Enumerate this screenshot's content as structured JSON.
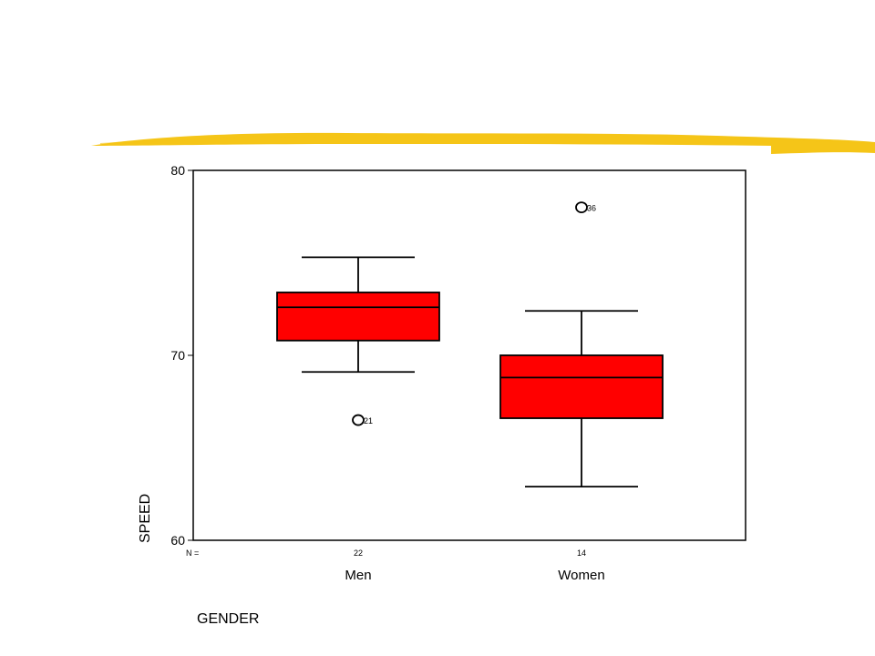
{
  "chart_data": {
    "type": "box",
    "xlabel": "GENDER",
    "ylabel": "SPEED",
    "ylim": [
      60,
      80
    ],
    "yticks": [
      60,
      70,
      80
    ],
    "categories": [
      "Men",
      "Women"
    ],
    "n_label": "N =",
    "groups": [
      {
        "category": "Men",
        "n": "22",
        "whisker_low": 69.1,
        "q1": 70.8,
        "median": 72.6,
        "q3": 73.4,
        "whisker_high": 75.3,
        "outliers": [
          {
            "value": 66.5,
            "label": "21"
          }
        ]
      },
      {
        "category": "Women",
        "n": "14",
        "whisker_low": 62.9,
        "q1": 66.6,
        "median": 68.8,
        "q3": 70.0,
        "whisker_high": 72.4,
        "outliers": [
          {
            "value": 78.0,
            "label": "36"
          }
        ]
      }
    ],
    "box_fill": "#ff0000",
    "stroke": "#000000",
    "grid": false
  },
  "decoration": {
    "brush_color": "#f5c518"
  }
}
